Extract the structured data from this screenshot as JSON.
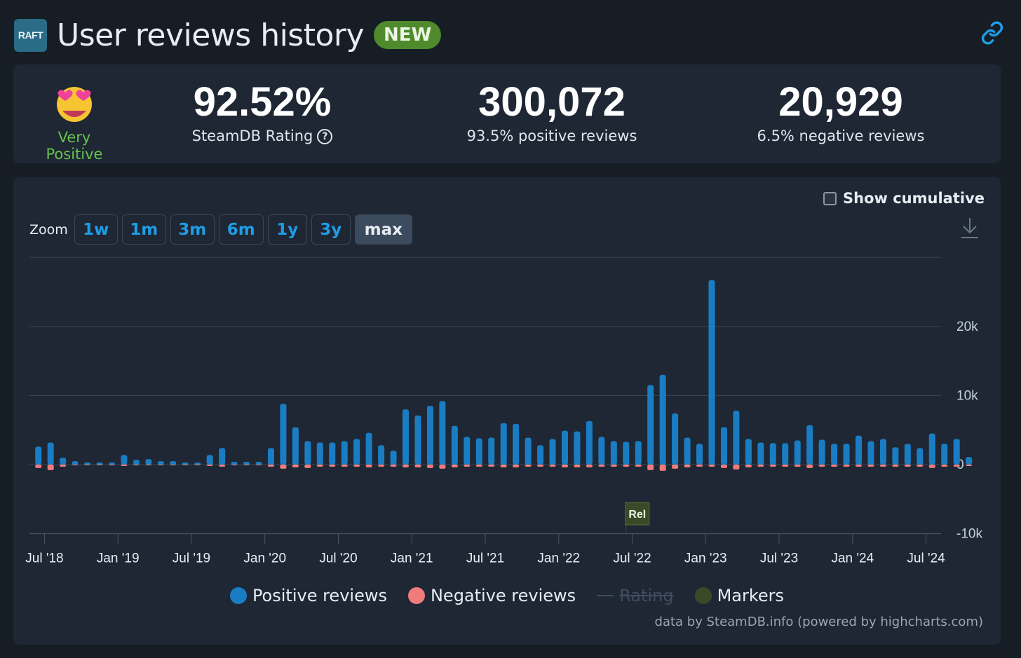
{
  "header": {
    "logo_text": "RAFT",
    "title": "User reviews history",
    "badge": "NEW"
  },
  "stats": {
    "rating_label": "Very Positive",
    "steamdb_rating": "92.52%",
    "steamdb_rating_label": "SteamDB Rating",
    "positive_count": "300,072",
    "positive_label": "93.5% positive reviews",
    "negative_count": "20,929",
    "negative_label": "6.5% negative reviews"
  },
  "controls": {
    "cumulative_label": "Show cumulative",
    "zoom_label": "Zoom",
    "zoom_options": [
      "1w",
      "1m",
      "3m",
      "6m",
      "1y",
      "3y",
      "max"
    ],
    "zoom_active": "max"
  },
  "legend": {
    "positive": "Positive reviews",
    "negative": "Negative reviews",
    "rating": "Rating",
    "markers": "Markers"
  },
  "credits": "data by SteamDB.info (powered by highcharts.com)",
  "colors": {
    "positive": "#1a7dc4",
    "negative": "#f07b7b",
    "marker": "#3b4a26",
    "rating": "#3e4c5e"
  },
  "chart_data": {
    "type": "bar",
    "title": "User reviews history",
    "x_start": "2018-06",
    "x_end": "2024-08",
    "xtick_labels": [
      "Jul '18",
      "Jan '19",
      "Jul '19",
      "Jan '20",
      "Jul '20",
      "Jan '21",
      "Jul '21",
      "Jan '22",
      "Jul '22",
      "Jan '23",
      "Jul '23",
      "Jan '24",
      "Jul '24"
    ],
    "ytick_labels": [
      "-10k",
      "0",
      "10k",
      "20k"
    ],
    "ylim": [
      -10000,
      30000
    ],
    "grid": true,
    "legend_position": "bottom",
    "series": [
      {
        "name": "Positive reviews",
        "color": "#1a7dc4",
        "values": [
          2600,
          3200,
          1000,
          500,
          300,
          300,
          300,
          1400,
          700,
          800,
          500,
          500,
          300,
          300,
          1400,
          2400,
          400,
          400,
          400,
          2400,
          8800,
          5400,
          3400,
          3200,
          3200,
          3400,
          3700,
          4600,
          2800,
          2000,
          8000,
          7100,
          8500,
          9200,
          5600,
          4000,
          3800,
          3900,
          6000,
          5900,
          3900,
          2800,
          3700,
          4900,
          4800,
          6300,
          4000,
          3400,
          3300,
          3400,
          11500,
          13000,
          7400,
          3900,
          3000,
          26700,
          5400,
          7800,
          3700,
          3200,
          3100,
          3100,
          3500,
          5700,
          3600,
          3000,
          3000,
          4200,
          3400,
          3700,
          2500,
          3000,
          2400,
          4500,
          3000,
          3700,
          1100
        ],
        "series_name_hint": ""
      },
      {
        "name": "Negative reviews",
        "color": "#f07b7b",
        "values": [
          -500,
          -800,
          -300,
          -100,
          -100,
          -100,
          -100,
          -200,
          -100,
          -100,
          -100,
          -100,
          -100,
          -100,
          -200,
          -300,
          -100,
          -100,
          -100,
          -300,
          -600,
          -400,
          -500,
          -300,
          -300,
          -300,
          -300,
          -400,
          -300,
          -300,
          -400,
          -400,
          -500,
          -600,
          -400,
          -300,
          -300,
          -300,
          -400,
          -400,
          -300,
          -300,
          -300,
          -400,
          -400,
          -400,
          -300,
          -300,
          -300,
          -300,
          -800,
          -900,
          -600,
          -400,
          -300,
          -300,
          -500,
          -700,
          -400,
          -300,
          -300,
          -300,
          -300,
          -500,
          -300,
          -300,
          -300,
          -300,
          -300,
          -300,
          -300,
          -300,
          -300,
          -500,
          -300,
          -300,
          -200
        ]
      }
    ],
    "markers": [
      {
        "label": "Rel",
        "date": "2022-06"
      }
    ]
  }
}
